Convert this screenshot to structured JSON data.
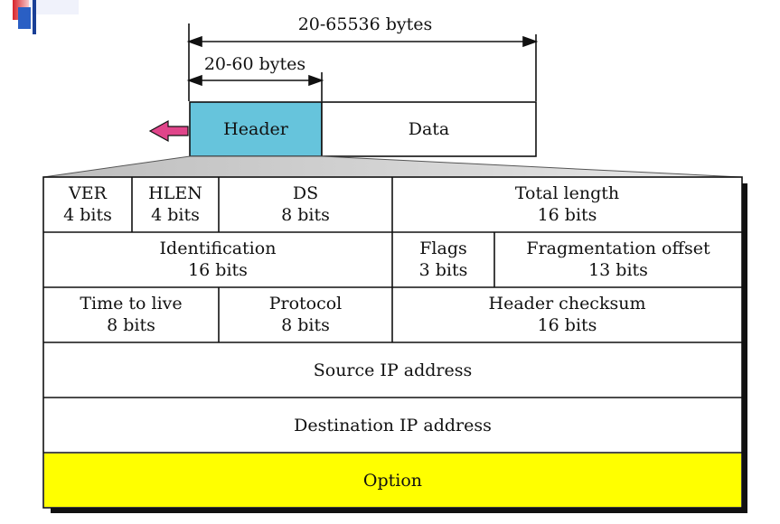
{
  "dimensions": {
    "total": "20-65536 bytes",
    "header": "20-60 bytes"
  },
  "datagram": {
    "header_label": "Header",
    "data_label": "Data",
    "header_color": "#66c4dc",
    "arrow_color": "#e0458a"
  },
  "fields": {
    "ver": {
      "name": "VER",
      "size": "4 bits"
    },
    "hlen": {
      "name": "HLEN",
      "size": "4 bits"
    },
    "ds": {
      "name": "DS",
      "size": "8 bits"
    },
    "total_length": {
      "name": "Total length",
      "size": "16 bits"
    },
    "identification": {
      "name": "Identification",
      "size": "16 bits"
    },
    "flags": {
      "name": "Flags",
      "size": "3 bits"
    },
    "frag_offset": {
      "name": "Fragmentation offset",
      "size": "13 bits"
    },
    "ttl": {
      "name": "Time to live",
      "size": "8 bits"
    },
    "protocol": {
      "name": "Protocol",
      "size": "8 bits"
    },
    "checksum": {
      "name": "Header checksum",
      "size": "16 bits"
    },
    "source_ip": {
      "name": "Source IP address"
    },
    "dest_ip": {
      "name": "Destination IP address"
    },
    "option": {
      "name": "Option",
      "color": "#ffff00"
    }
  },
  "slide_decoration": {
    "colors": [
      "#d8232a",
      "#2a5fc4",
      "#7fa0e0"
    ]
  }
}
